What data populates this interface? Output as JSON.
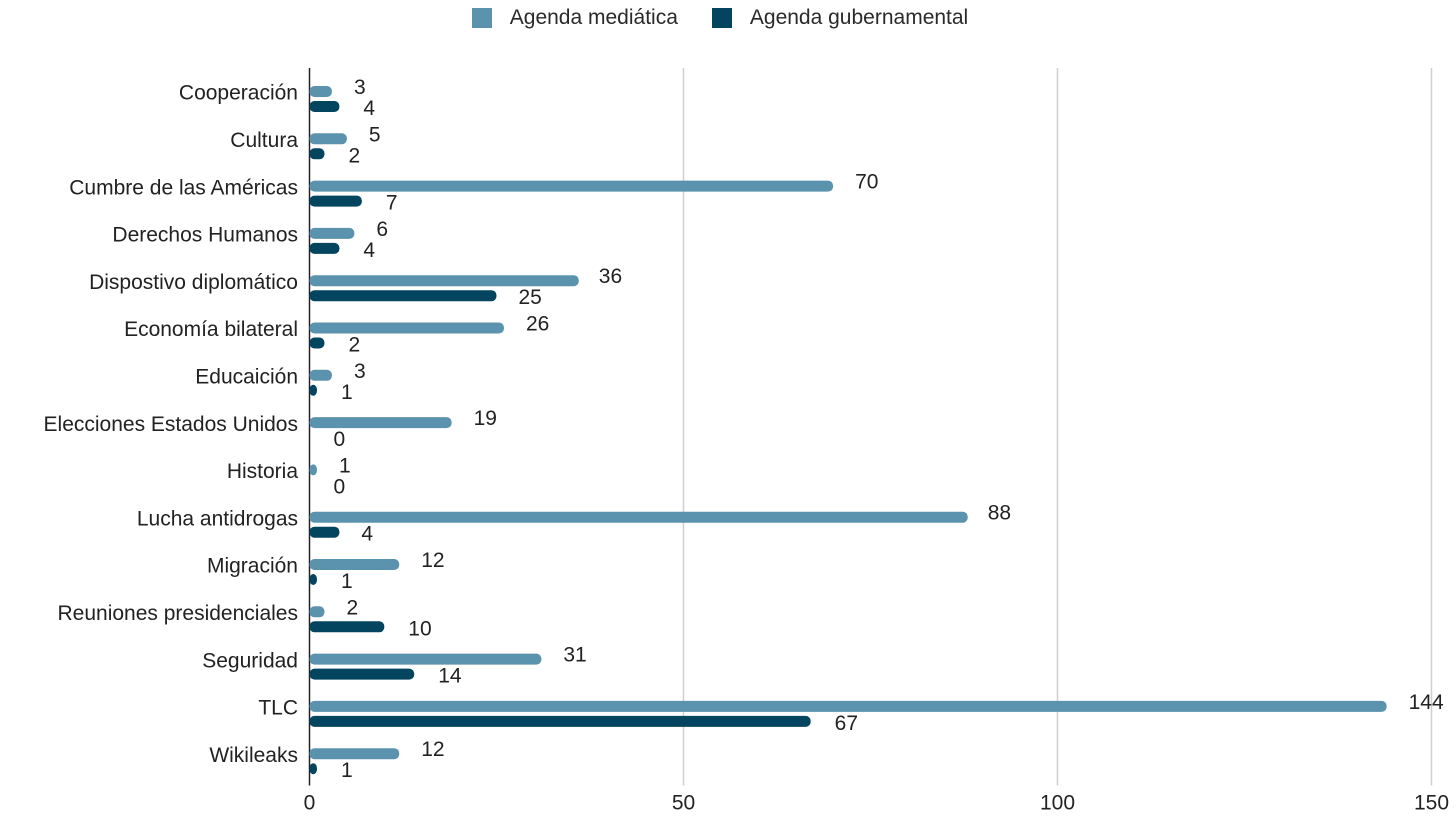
{
  "chart_data": {
    "type": "bar",
    "orientation": "horizontal",
    "categories": [
      "Cooperación",
      "Cultura",
      "Cumbre de las Américas",
      "Derechos Humanos",
      "Dispostivo diplomático",
      "Economía bilateral",
      "Educaición",
      "Elecciones Estados Unidos",
      "Historia",
      "Lucha antidrogas",
      "Migración",
      "Reuniones presidenciales",
      "Seguridad",
      "TLC",
      "Wikileaks"
    ],
    "series": [
      {
        "name": "Agenda mediática",
        "color": "#5b93ae",
        "values": [
          3,
          5,
          70,
          6,
          36,
          26,
          3,
          19,
          1,
          88,
          12,
          2,
          31,
          144,
          12
        ]
      },
      {
        "name": "Agenda gubernamental",
        "color": "#03445f",
        "values": [
          4,
          2,
          7,
          4,
          25,
          2,
          1,
          0,
          0,
          4,
          1,
          10,
          14,
          67,
          1
        ]
      }
    ],
    "xlim": [
      0,
      150
    ],
    "xticks": [
      "0",
      "50",
      "100",
      "150"
    ],
    "grid": true,
    "legend_position": "top-center",
    "title": "",
    "xlabel": "",
    "ylabel": ""
  }
}
